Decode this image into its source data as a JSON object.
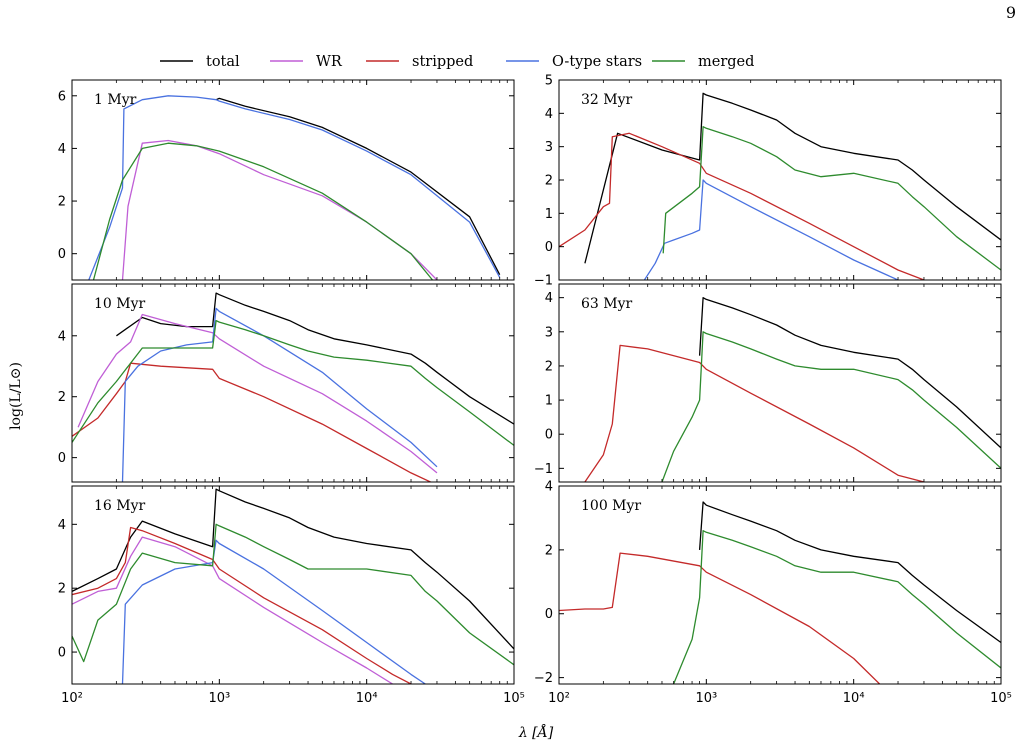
{
  "page_number": "9",
  "legend": [
    {
      "label": "total",
      "color": "#000000"
    },
    {
      "label": "WR",
      "color": "#c05fd6"
    },
    {
      "label": "stripped",
      "color": "#c42a2a"
    },
    {
      "label": "O-type stars",
      "color": "#4a72e0"
    },
    {
      "label": "merged",
      "color": "#2e8b2e"
    }
  ],
  "ylabel": "log(L/L⊙)",
  "xlabel": "λ [Å]",
  "chart_data": [
    {
      "type": "line",
      "title": "1 Myr",
      "xscale": "log",
      "xlim": [
        100,
        100000
      ],
      "ylim": [
        -1,
        6.6
      ],
      "yticks": [
        0,
        2,
        4,
        6
      ],
      "yticklabels": [
        "0",
        "2",
        "4",
        "6"
      ],
      "xticklabels": [],
      "series": [
        {
          "name": "total",
          "color": "#000000",
          "x": [
            950,
            1000,
            1500,
            3000,
            5000,
            10000,
            20000,
            50000,
            80000
          ],
          "y": [
            5.85,
            5.9,
            5.6,
            5.2,
            4.8,
            4.0,
            3.1,
            1.4,
            -0.8
          ]
        },
        {
          "name": "O-type stars",
          "color": "#4a72e0",
          "x": [
            100,
            130,
            180,
            220,
            225,
            300,
            450,
            700,
            950,
            1000,
            1500,
            3000,
            5000,
            10000,
            20000,
            50000,
            80000
          ],
          "y": [
            -1.5,
            -1,
            1.0,
            2.5,
            5.5,
            5.85,
            6.0,
            5.95,
            5.85,
            5.8,
            5.5,
            5.1,
            4.7,
            3.9,
            3.0,
            1.2,
            -0.9
          ]
        },
        {
          "name": "WR",
          "color": "#c05fd6",
          "x": [
            220,
            240,
            300,
            450,
            700,
            1000,
            2000,
            5000,
            10000,
            20000,
            30000
          ],
          "y": [
            -1,
            1.8,
            4.2,
            4.3,
            4.1,
            3.8,
            3.0,
            2.2,
            1.2,
            0,
            -1
          ]
        },
        {
          "name": "merged",
          "color": "#2e8b2e",
          "x": [
            140,
            180,
            220,
            300,
            450,
            700,
            1000,
            2000,
            5000,
            10000,
            20000,
            28000
          ],
          "y": [
            -1,
            1.3,
            2.8,
            4.0,
            4.2,
            4.1,
            3.9,
            3.3,
            2.3,
            1.2,
            0,
            -1
          ]
        }
      ]
    },
    {
      "type": "line",
      "title": "32 Myr",
      "xscale": "log",
      "xlim": [
        100,
        100000
      ],
      "ylim": [
        -1,
        5
      ],
      "yticks": [
        -1,
        0,
        1,
        2,
        3,
        4,
        5
      ],
      "yticklabels": [
        "−1",
        "0",
        "1",
        "2",
        "3",
        "4",
        "5"
      ],
      "xticklabels": [],
      "series": [
        {
          "name": "total",
          "color": "#000000",
          "x": [
            150,
            250,
            500,
            900,
            950,
            1000,
            1500,
            2000,
            3000,
            4000,
            6000,
            10000,
            20000,
            25000,
            30000,
            50000,
            100000
          ],
          "y": [
            -0.5,
            3.4,
            2.9,
            2.6,
            4.6,
            4.55,
            4.3,
            4.1,
            3.8,
            3.4,
            3.0,
            2.8,
            2.6,
            2.3,
            2.0,
            1.2,
            0.2
          ]
        },
        {
          "name": "stripped",
          "color": "#c42a2a",
          "x": [
            100,
            150,
            200,
            220,
            230,
            300,
            500,
            900,
            1000,
            2000,
            5000,
            10000,
            20000,
            30000
          ],
          "y": [
            0,
            0.5,
            1.2,
            1.3,
            3.3,
            3.4,
            3.0,
            2.5,
            2.2,
            1.6,
            0.7,
            0,
            -0.7,
            -1
          ]
        },
        {
          "name": "O-type stars",
          "color": "#4a72e0",
          "x": [
            380,
            450,
            520,
            600,
            800,
            900,
            950,
            1000,
            2000,
            5000,
            10000,
            20000
          ],
          "y": [
            -1,
            -0.5,
            0.1,
            0.2,
            0.4,
            0.5,
            2.0,
            1.9,
            1.2,
            0.3,
            -0.4,
            -1
          ]
        },
        {
          "name": "merged",
          "color": "#2e8b2e",
          "x": [
            510,
            530,
            800,
            900,
            950,
            1000,
            1500,
            2000,
            3000,
            4000,
            6000,
            10000,
            20000,
            25000,
            30000,
            50000,
            100000
          ],
          "y": [
            -0.2,
            1.0,
            1.6,
            1.8,
            3.6,
            3.55,
            3.3,
            3.1,
            2.7,
            2.3,
            2.1,
            2.2,
            1.9,
            1.5,
            1.2,
            0.3,
            -0.7
          ]
        }
      ]
    },
    {
      "type": "line",
      "title": "10 Myr",
      "xscale": "log",
      "xlim": [
        100,
        100000
      ],
      "ylim": [
        -0.8,
        5.7
      ],
      "yticks": [
        0,
        2,
        4
      ],
      "yticklabels": [
        "0",
        "2",
        "4"
      ],
      "xticklabels": [],
      "series": [
        {
          "name": "total",
          "color": "#000000",
          "x": [
            200,
            300,
            400,
            600,
            900,
            950,
            1000,
            1500,
            2000,
            3000,
            4000,
            6000,
            10000,
            20000,
            25000,
            30000,
            50000,
            100000
          ],
          "y": [
            4.0,
            4.6,
            4.4,
            4.3,
            4.3,
            5.4,
            5.35,
            5.0,
            4.8,
            4.5,
            4.2,
            3.9,
            3.7,
            3.4,
            3.1,
            2.8,
            2.0,
            1.1
          ]
        },
        {
          "name": "WR",
          "color": "#c05fd6",
          "x": [
            110,
            150,
            200,
            250,
            300,
            500,
            900,
            1000,
            2000,
            5000,
            10000,
            20000,
            30000
          ],
          "y": [
            1.0,
            2.5,
            3.4,
            3.8,
            4.7,
            4.4,
            4.1,
            3.9,
            3.0,
            2.1,
            1.2,
            0.2,
            -0.5
          ]
        },
        {
          "name": "stripped",
          "color": "#c42a2a",
          "x": [
            100,
            150,
            200,
            230,
            250,
            400,
            900,
            1000,
            2000,
            5000,
            10000,
            20000,
            30000
          ],
          "y": [
            0.7,
            1.3,
            2.1,
            2.5,
            3.1,
            3.0,
            2.9,
            2.6,
            2.0,
            1.1,
            0.3,
            -0.5,
            -0.9
          ]
        },
        {
          "name": "O-type stars",
          "color": "#4a72e0",
          "x": [
            220,
            230,
            280,
            400,
            600,
            900,
            950,
            1000,
            2000,
            5000,
            10000,
            20000,
            30000
          ],
          "y": [
            -0.8,
            2.5,
            3.0,
            3.5,
            3.7,
            3.8,
            4.9,
            4.8,
            4.0,
            2.8,
            1.6,
            0.5,
            -0.3
          ]
        },
        {
          "name": "merged",
          "color": "#2e8b2e",
          "x": [
            100,
            150,
            200,
            300,
            500,
            900,
            950,
            1000,
            1500,
            2000,
            3000,
            4000,
            6000,
            10000,
            20000,
            25000,
            30000,
            50000,
            100000
          ],
          "y": [
            0.5,
            1.8,
            2.5,
            3.6,
            3.6,
            3.6,
            4.5,
            4.45,
            4.2,
            4.0,
            3.7,
            3.5,
            3.3,
            3.2,
            3.0,
            2.6,
            2.3,
            1.5,
            0.4
          ]
        }
      ]
    },
    {
      "type": "line",
      "title": "63 Myr",
      "xscale": "log",
      "xlim": [
        100,
        100000
      ],
      "ylim": [
        -1.4,
        4.4
      ],
      "yticks": [
        -1,
        0,
        1,
        2,
        3,
        4
      ],
      "yticklabels": [
        "−1",
        "0",
        "1",
        "2",
        "3",
        "4"
      ],
      "xticklabels": [],
      "series": [
        {
          "name": "total",
          "color": "#000000",
          "x": [
            900,
            950,
            1000,
            1500,
            2000,
            3000,
            4000,
            6000,
            10000,
            20000,
            25000,
            30000,
            50000,
            100000
          ],
          "y": [
            2.3,
            4.0,
            3.95,
            3.7,
            3.5,
            3.2,
            2.9,
            2.6,
            2.4,
            2.2,
            1.9,
            1.6,
            0.8,
            -0.4
          ]
        },
        {
          "name": "stripped",
          "color": "#c42a2a",
          "x": [
            150,
            200,
            230,
            260,
            400,
            900,
            1000,
            2000,
            5000,
            10000,
            20000,
            30000
          ],
          "y": [
            -1.4,
            -0.6,
            0.3,
            2.6,
            2.5,
            2.1,
            1.9,
            1.2,
            0.3,
            -0.4,
            -1.2,
            -1.4
          ]
        },
        {
          "name": "merged",
          "color": "#2e8b2e",
          "x": [
            500,
            600,
            800,
            900,
            950,
            1000,
            1500,
            2000,
            3000,
            4000,
            6000,
            10000,
            20000,
            25000,
            30000,
            50000,
            100000
          ],
          "y": [
            -1.4,
            -0.5,
            0.5,
            1.0,
            3.0,
            2.95,
            2.7,
            2.5,
            2.2,
            2.0,
            1.9,
            1.9,
            1.6,
            1.3,
            1.0,
            0.2,
            -1.0
          ]
        }
      ]
    },
    {
      "type": "line",
      "title": "16 Myr",
      "xscale": "log",
      "xlim": [
        100,
        100000
      ],
      "ylim": [
        -1,
        5.2
      ],
      "yticks": [
        0,
        2,
        4
      ],
      "yticklabels": [
        "0",
        "2",
        "4"
      ],
      "xticklabels": [
        "10²",
        "10³",
        "10⁴",
        "10⁵"
      ],
      "series": [
        {
          "name": "total",
          "color": "#000000",
          "x": [
            100,
            150,
            200,
            250,
            300,
            500,
            900,
            950,
            1000,
            1500,
            2000,
            3000,
            4000,
            6000,
            10000,
            20000,
            25000,
            30000,
            50000,
            100000
          ],
          "y": [
            1.9,
            2.3,
            2.6,
            3.6,
            4.1,
            3.7,
            3.3,
            5.1,
            5.05,
            4.7,
            4.5,
            4.2,
            3.9,
            3.6,
            3.4,
            3.2,
            2.8,
            2.5,
            1.6,
            0.1
          ]
        },
        {
          "name": "stripped",
          "color": "#c42a2a",
          "x": [
            100,
            150,
            200,
            230,
            250,
            300,
            500,
            900,
            1000,
            2000,
            5000,
            10000,
            15000,
            20000
          ],
          "y": [
            1.8,
            2.0,
            2.3,
            2.8,
            3.9,
            3.8,
            3.4,
            2.9,
            2.6,
            1.7,
            0.7,
            -0.2,
            -0.7,
            -1
          ]
        },
        {
          "name": "WR",
          "color": "#c05fd6",
          "x": [
            100,
            150,
            200,
            250,
            300,
            500,
            900,
            1000,
            2000,
            5000,
            10000,
            15000
          ],
          "y": [
            1.5,
            1.9,
            2.0,
            3.0,
            3.6,
            3.3,
            2.7,
            2.3,
            1.4,
            0.3,
            -0.5,
            -1
          ]
        },
        {
          "name": "O-type stars",
          "color": "#4a72e0",
          "x": [
            220,
            230,
            300,
            500,
            900,
            950,
            1000,
            2000,
            5000,
            10000,
            20000,
            25000
          ],
          "y": [
            -1,
            1.5,
            2.1,
            2.6,
            2.8,
            3.5,
            3.4,
            2.6,
            1.3,
            0.3,
            -0.7,
            -1
          ]
        },
        {
          "name": "merged",
          "color": "#2e8b2e",
          "x": [
            100,
            120,
            150,
            200,
            250,
            300,
            500,
            900,
            950,
            1000,
            1500,
            2000,
            3000,
            4000,
            6000,
            10000,
            20000,
            25000,
            30000,
            50000,
            100000
          ],
          "y": [
            0.5,
            -0.3,
            1.0,
            1.5,
            2.6,
            3.1,
            2.8,
            2.7,
            4.0,
            3.95,
            3.6,
            3.3,
            2.9,
            2.6,
            2.6,
            2.6,
            2.4,
            1.9,
            1.6,
            0.6,
            -0.4
          ]
        }
      ]
    },
    {
      "type": "line",
      "title": "100 Myr",
      "xscale": "log",
      "xlim": [
        100,
        100000
      ],
      "ylim": [
        -2.2,
        4
      ],
      "yticks": [
        -2,
        0,
        2,
        4
      ],
      "yticklabels": [
        "−2",
        "0",
        "2",
        "4"
      ],
      "xticklabels": [
        "10²",
        "10³",
        "10⁴",
        "10⁵"
      ],
      "series": [
        {
          "name": "total",
          "color": "#000000",
          "x": [
            900,
            950,
            1000,
            1500,
            2000,
            3000,
            4000,
            6000,
            10000,
            20000,
            25000,
            30000,
            50000,
            100000
          ],
          "y": [
            2.0,
            3.5,
            3.4,
            3.1,
            2.9,
            2.6,
            2.3,
            2.0,
            1.8,
            1.6,
            1.2,
            0.9,
            0.1,
            -0.9
          ]
        },
        {
          "name": "stripped",
          "color": "#c42a2a",
          "x": [
            100,
            150,
            200,
            230,
            260,
            400,
            900,
            1000,
            2000,
            5000,
            10000,
            15000
          ],
          "y": [
            0.1,
            0.15,
            0.15,
            0.2,
            1.9,
            1.8,
            1.5,
            1.3,
            0.6,
            -0.4,
            -1.4,
            -2.2
          ]
        },
        {
          "name": "merged",
          "color": "#2e8b2e",
          "x": [
            600,
            800,
            900,
            950,
            1000,
            1500,
            2000,
            3000,
            4000,
            6000,
            10000,
            20000,
            25000,
            30000,
            50000,
            100000
          ],
          "y": [
            -2.2,
            -0.8,
            0.5,
            2.6,
            2.55,
            2.3,
            2.1,
            1.8,
            1.5,
            1.3,
            1.3,
            1.0,
            0.6,
            0.3,
            -0.6,
            -1.7
          ]
        }
      ]
    }
  ]
}
